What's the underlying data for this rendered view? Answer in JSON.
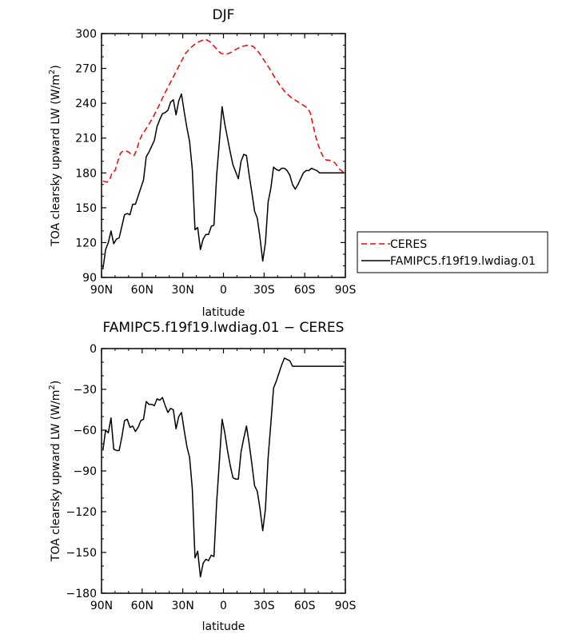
{
  "chart_data": [
    {
      "type": "line",
      "title": "DJF",
      "xlabel": "latitude",
      "ylabel": "TOA clearsky upward LW (W/m",
      "ylabel_sup": "2",
      "ylabel_tail": ")",
      "xlim": [
        90,
        -90
      ],
      "ylim": [
        90,
        300
      ],
      "x_ticks": [
        90,
        60,
        30,
        0,
        -30,
        -60,
        -90
      ],
      "x_tick_labels": [
        "90N",
        "60N",
        "30N",
        "0",
        "30S",
        "60S",
        "90S"
      ],
      "y_ticks": [
        90,
        120,
        150,
        180,
        210,
        240,
        270,
        300
      ],
      "y_tick_labels": [
        "90",
        "120",
        "150",
        "180",
        "210",
        "240",
        "270",
        "300"
      ],
      "legend_position": "right, outside plot",
      "series": [
        {
          "name": "CERES",
          "color": "#ff0000",
          "dash": "dashed",
          "x": [
            89,
            86,
            84,
            82,
            80,
            78,
            76,
            74,
            72,
            70,
            68,
            66,
            64,
            62,
            60,
            56,
            52,
            48,
            44,
            40,
            36,
            32,
            28,
            24,
            20,
            16,
            13,
            10,
            6,
            2,
            -2,
            -6,
            -10,
            -14,
            -18,
            -22,
            -26,
            -30,
            -34,
            -38,
            -42,
            -46,
            -50,
            -54,
            -58,
            -62,
            -64,
            -66,
            -68,
            -70,
            -72,
            -74,
            -76,
            -78,
            -80,
            -82,
            -84,
            -86,
            -88,
            -90
          ],
          "y": [
            173,
            172,
            174,
            181,
            182,
            190,
            197,
            199,
            199,
            198,
            196,
            195,
            200,
            208,
            213,
            220,
            228,
            237,
            247,
            256,
            265,
            274,
            283,
            288,
            292,
            294,
            295,
            293,
            288,
            283,
            282,
            284,
            287,
            289,
            290,
            289,
            284,
            277,
            270,
            262,
            255,
            249,
            245,
            242,
            239,
            236,
            232,
            222,
            212,
            204,
            198,
            193,
            191,
            191,
            190,
            189,
            186,
            183,
            181,
            180
          ]
        },
        {
          "name": "FAMIPC5.f19f19.lwdiag.01",
          "color": "#000000",
          "dash": "solid",
          "x": [
            89,
            87,
            85,
            83,
            81,
            79,
            77,
            75,
            73,
            71,
            69,
            67,
            65,
            63,
            61,
            59,
            57,
            55,
            53,
            51,
            49,
            47,
            45,
            43,
            41,
            39,
            37,
            35,
            33,
            31,
            29,
            27,
            25,
            23,
            21,
            19,
            17,
            15,
            13,
            11,
            9,
            7,
            5,
            3,
            1,
            -1,
            -3,
            -5,
            -7,
            -9,
            -11,
            -13,
            -15,
            -17,
            -19,
            -21,
            -23,
            -25,
            -27,
            -29,
            -31,
            -33,
            -35,
            -37,
            -39,
            -41,
            -43,
            -45,
            -47,
            -49,
            -51,
            -53,
            -55,
            -57,
            -59,
            -61,
            -63,
            -65,
            -67,
            -69,
            -71,
            -73,
            -75,
            -77,
            -79,
            -81,
            -83,
            -85,
            -87,
            -89
          ],
          "y": [
            97,
            114,
            120,
            130,
            119,
            123,
            124,
            134,
            144,
            145,
            144,
            153,
            153,
            160,
            167,
            174,
            194,
            198,
            203,
            208,
            220,
            226,
            231,
            232,
            234,
            241,
            243,
            230,
            242,
            248,
            233,
            219,
            207,
            183,
            131,
            133,
            114,
            123,
            127,
            127,
            134,
            135,
            178,
            207,
            237,
            222,
            210,
            198,
            187,
            181,
            175,
            190,
            196,
            195,
            178,
            163,
            147,
            141,
            124,
            104,
            120,
            155,
            167,
            185,
            183,
            182,
            184,
            184,
            182,
            178,
            170,
            166,
            170,
            175,
            180,
            182,
            182,
            184,
            183,
            182,
            180,
            180,
            180,
            180,
            180,
            180,
            180,
            180,
            180,
            180
          ]
        }
      ]
    },
    {
      "type": "line",
      "title": "FAMIPC5.f19f19.lwdiag.01 − CERES",
      "xlabel": "latitude",
      "ylabel": "TOA clearsky upward LW (W/m",
      "ylabel_sup": "2",
      "ylabel_tail": ")",
      "xlim": [
        90,
        -90
      ],
      "ylim": [
        -180,
        0
      ],
      "x_ticks": [
        90,
        60,
        30,
        0,
        -30,
        -60,
        -90
      ],
      "x_tick_labels": [
        "90N",
        "60N",
        "30N",
        "0",
        "30S",
        "60S",
        "90S"
      ],
      "y_ticks": [
        -180,
        -150,
        -120,
        -90,
        -60,
        -30,
        0
      ],
      "y_tick_labels": [
        "−180",
        "−150",
        "−120",
        "−90",
        "−60",
        "−30",
        "0"
      ],
      "series": [
        {
          "name": "",
          "color": "#000000",
          "dash": "solid",
          "x": [
            89,
            87,
            85,
            83,
            81,
            79,
            77,
            75,
            73,
            71,
            69,
            67,
            65,
            63,
            61,
            59,
            57,
            55,
            53,
            51,
            49,
            47,
            45,
            43,
            41,
            39,
            37,
            35,
            33,
            31,
            29,
            27,
            25,
            23,
            21,
            19,
            17,
            15,
            13,
            11,
            9,
            7,
            5,
            3,
            1,
            -1,
            -3,
            -5,
            -7,
            -9,
            -11,
            -13,
            -15,
            -17,
            -19,
            -21,
            -23,
            -25,
            -27,
            -29,
            -31,
            -33,
            -35,
            -37,
            -39,
            -41,
            -43,
            -45,
            -47,
            -49,
            -51,
            -53,
            -55,
            -57,
            -59,
            -61,
            -63,
            -65,
            -67,
            -69,
            -71,
            -73,
            -75,
            -77,
            -79,
            -81,
            -83,
            -85,
            -87,
            -89
          ],
          "y": [
            -75,
            -60,
            -62,
            -51,
            -74,
            -75,
            -75,
            -65,
            -53,
            -52,
            -58,
            -57,
            -61,
            -58,
            -53,
            -52,
            -39,
            -41,
            -41,
            -42,
            -37,
            -38,
            -36,
            -42,
            -47,
            -44,
            -45,
            -59,
            -50,
            -47,
            -60,
            -72,
            -80,
            -103,
            -154,
            -149,
            -168,
            -158,
            -155,
            -156,
            -152,
            -153,
            -113,
            -83,
            -52,
            -62,
            -75,
            -86,
            -95,
            -96,
            -96,
            -76,
            -66,
            -57,
            -70,
            -85,
            -101,
            -105,
            -118,
            -134,
            -118,
            -80,
            -55,
            -29,
            -24,
            -18,
            -12,
            -7,
            -8,
            -9,
            -13,
            -13,
            -13,
            -13,
            -13,
            -13,
            -13,
            -13,
            -13,
            -13,
            -13,
            -13,
            -13,
            -13,
            -13,
            -13,
            -13,
            -13,
            -13,
            -13
          ]
        }
      ]
    }
  ]
}
